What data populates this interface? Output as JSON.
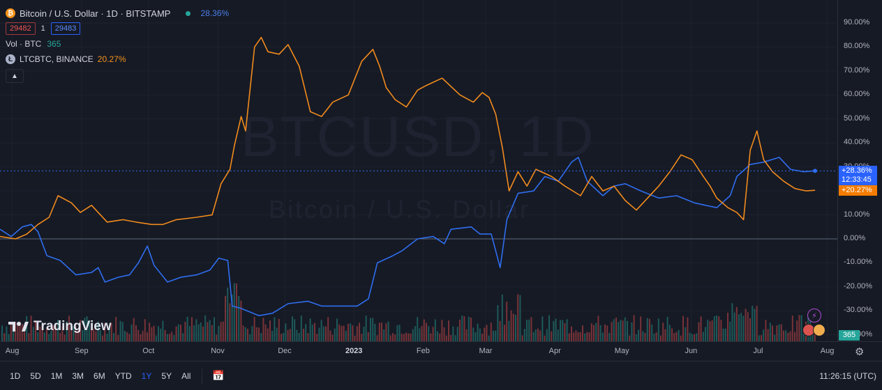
{
  "header": {
    "title": "Bitcoin / U.S. Dollar · 1D · BITSTAMP",
    "change_pct": "28.36%",
    "bid": "29482",
    "spread": "1",
    "ask": "29483",
    "vol_label": "Vol · BTC",
    "vol_value": "365",
    "compare_label": "LTCBTC, BINANCE",
    "compare_pct": "20.27%",
    "collapse_icon": "chevron-up-icon"
  },
  "watermark": {
    "symbol": "BTCUSD, 1D",
    "name": "Bitcoin / U.S. Dollar"
  },
  "logo": {
    "text": "TradingView"
  },
  "y_axis": {
    "ticks": [
      "90.00%",
      "80.00%",
      "70.00%",
      "60.00%",
      "50.00%",
      "40.00%",
      "30.00%",
      "20.00%",
      "10.00%",
      "0.00%",
      "-10.00%",
      "-20.00%",
      "-30.00%",
      "-40.00%"
    ],
    "badge_btc_pct": "+28.36%",
    "badge_btc_timer": "12:33:45",
    "badge_ltc_pct": "+20.27%",
    "badge_vol": "365"
  },
  "x_axis": {
    "ticks": [
      "Aug",
      "Sep",
      "Oct",
      "Nov",
      "Dec",
      "2023",
      "Feb",
      "Mar",
      "Apr",
      "May",
      "Jun",
      "Jul",
      "Aug"
    ]
  },
  "toolbar": {
    "ranges": [
      "1D",
      "5D",
      "1M",
      "3M",
      "6M",
      "YTD",
      "1Y",
      "5Y",
      "All"
    ],
    "active_range": "1Y",
    "clock": "11:26:15 (UTC)"
  },
  "colors": {
    "btc": "#2f6ef0",
    "ltc": "#f28b1d",
    "vol_up": "#26a69a",
    "vol_down": "#ef5350",
    "bg": "#161a25"
  },
  "chart_data": {
    "type": "line",
    "xlabel": "",
    "ylabel": "",
    "x_range": [
      "2022-07-29",
      "2023-07-29"
    ],
    "y_unit": "percent change",
    "ylim": [
      -40,
      95
    ],
    "grid": true,
    "series": [
      {
        "name": "Bitcoin / U.S. Dollar",
        "color": "#2f6ef0",
        "points": [
          [
            "2022-07-29",
            4
          ],
          [
            "2022-08-03",
            1
          ],
          [
            "2022-08-08",
            5
          ],
          [
            "2022-08-12",
            6
          ],
          [
            "2022-08-15",
            3
          ],
          [
            "2022-08-19",
            -7
          ],
          [
            "2022-08-25",
            -9
          ],
          [
            "2022-09-01",
            -15
          ],
          [
            "2022-09-08",
            -14
          ],
          [
            "2022-09-11",
            -12
          ],
          [
            "2022-09-14",
            -18
          ],
          [
            "2022-09-20",
            -16
          ],
          [
            "2022-09-25",
            -15
          ],
          [
            "2022-09-29",
            -10
          ],
          [
            "2022-10-03",
            -3
          ],
          [
            "2022-10-06",
            -11
          ],
          [
            "2022-10-12",
            -18
          ],
          [
            "2022-10-18",
            -16
          ],
          [
            "2022-10-25",
            -15
          ],
          [
            "2022-10-31",
            -13
          ],
          [
            "2022-11-04",
            -8
          ],
          [
            "2022-11-08",
            -9
          ],
          [
            "2022-11-10",
            -28
          ],
          [
            "2022-11-14",
            -29
          ],
          [
            "2022-11-22",
            -32
          ],
          [
            "2022-11-28",
            -31
          ],
          [
            "2022-12-05",
            -27
          ],
          [
            "2022-12-14",
            -26
          ],
          [
            "2022-12-20",
            -28
          ],
          [
            "2022-12-28",
            -28
          ],
          [
            "2023-01-05",
            -28
          ],
          [
            "2023-01-10",
            -25
          ],
          [
            "2023-01-14",
            -10
          ],
          [
            "2023-01-21",
            -7
          ],
          [
            "2023-01-25",
            -5
          ],
          [
            "2023-02-01",
            0
          ],
          [
            "2023-02-08",
            1
          ],
          [
            "2023-02-13",
            -2
          ],
          [
            "2023-02-16",
            4
          ],
          [
            "2023-02-25",
            5
          ],
          [
            "2023-03-01",
            2
          ],
          [
            "2023-03-06",
            2
          ],
          [
            "2023-03-10",
            -12
          ],
          [
            "2023-03-13",
            8
          ],
          [
            "2023-03-18",
            19
          ],
          [
            "2023-03-25",
            20
          ],
          [
            "2023-03-30",
            26
          ],
          [
            "2023-04-05",
            24
          ],
          [
            "2023-04-11",
            32
          ],
          [
            "2023-04-14",
            34
          ],
          [
            "2023-04-18",
            24
          ],
          [
            "2023-04-25",
            18
          ],
          [
            "2023-04-30",
            22
          ],
          [
            "2023-05-05",
            23
          ],
          [
            "2023-05-12",
            20
          ],
          [
            "2023-05-20",
            17
          ],
          [
            "2023-05-28",
            18
          ],
          [
            "2023-06-05",
            15
          ],
          [
            "2023-06-10",
            14
          ],
          [
            "2023-06-15",
            13
          ],
          [
            "2023-06-21",
            18
          ],
          [
            "2023-06-24",
            26
          ],
          [
            "2023-06-30",
            31
          ],
          [
            "2023-07-06",
            32
          ],
          [
            "2023-07-13",
            34
          ],
          [
            "2023-07-18",
            29
          ],
          [
            "2023-07-24",
            28
          ],
          [
            "2023-07-29",
            28.36
          ]
        ]
      },
      {
        "name": "LTCBTC, BINANCE",
        "color": "#f28b1d",
        "points": [
          [
            "2022-07-29",
            1
          ],
          [
            "2022-08-05",
            0
          ],
          [
            "2022-08-10",
            2
          ],
          [
            "2022-08-15",
            6
          ],
          [
            "2022-08-20",
            9
          ],
          [
            "2022-08-24",
            18
          ],
          [
            "2022-08-30",
            15
          ],
          [
            "2022-09-03",
            11
          ],
          [
            "2022-09-08",
            14
          ],
          [
            "2022-09-15",
            7
          ],
          [
            "2022-09-22",
            8
          ],
          [
            "2022-09-28",
            7
          ],
          [
            "2022-10-05",
            6
          ],
          [
            "2022-10-10",
            6
          ],
          [
            "2022-10-16",
            8
          ],
          [
            "2022-10-25",
            9
          ],
          [
            "2022-11-01",
            10
          ],
          [
            "2022-11-05",
            23
          ],
          [
            "2022-11-09",
            29
          ],
          [
            "2022-11-11",
            39
          ],
          [
            "2022-11-14",
            51
          ],
          [
            "2022-11-16",
            45
          ],
          [
            "2022-11-20",
            80
          ],
          [
            "2022-11-23",
            84
          ],
          [
            "2022-11-26",
            78
          ],
          [
            "2022-12-01",
            77
          ],
          [
            "2022-12-05",
            81
          ],
          [
            "2022-12-10",
            72
          ],
          [
            "2022-12-15",
            53
          ],
          [
            "2022-12-20",
            51
          ],
          [
            "2022-12-25",
            57
          ],
          [
            "2023-01-01",
            60
          ],
          [
            "2023-01-07",
            74
          ],
          [
            "2023-01-12",
            79
          ],
          [
            "2023-01-15",
            72
          ],
          [
            "2023-01-18",
            63
          ],
          [
            "2023-01-22",
            58
          ],
          [
            "2023-01-27",
            55
          ],
          [
            "2023-02-01",
            62
          ],
          [
            "2023-02-05",
            64
          ],
          [
            "2023-02-12",
            67
          ],
          [
            "2023-02-20",
            60
          ],
          [
            "2023-02-26",
            57
          ],
          [
            "2023-03-02",
            61
          ],
          [
            "2023-03-05",
            59
          ],
          [
            "2023-03-08",
            52
          ],
          [
            "2023-03-11",
            38
          ],
          [
            "2023-03-14",
            20
          ],
          [
            "2023-03-18",
            28
          ],
          [
            "2023-03-22",
            22
          ],
          [
            "2023-03-26",
            29
          ],
          [
            "2023-04-02",
            26
          ],
          [
            "2023-04-08",
            22
          ],
          [
            "2023-04-15",
            18
          ],
          [
            "2023-04-20",
            26
          ],
          [
            "2023-04-25",
            20
          ],
          [
            "2023-04-30",
            22
          ],
          [
            "2023-05-05",
            16
          ],
          [
            "2023-05-10",
            12
          ],
          [
            "2023-05-15",
            17
          ],
          [
            "2023-05-20",
            22
          ],
          [
            "2023-05-25",
            28
          ],
          [
            "2023-05-30",
            35
          ],
          [
            "2023-06-04",
            33
          ],
          [
            "2023-06-09",
            26
          ],
          [
            "2023-06-12",
            22
          ],
          [
            "2023-06-15",
            17
          ],
          [
            "2023-06-20",
            13
          ],
          [
            "2023-06-24",
            11
          ],
          [
            "2023-06-27",
            8
          ],
          [
            "2023-06-30",
            37
          ],
          [
            "2023-07-03",
            45
          ],
          [
            "2023-07-06",
            33
          ],
          [
            "2023-07-10",
            28
          ],
          [
            "2023-07-15",
            24
          ],
          [
            "2023-07-20",
            21
          ],
          [
            "2023-07-25",
            20
          ],
          [
            "2023-07-29",
            20.27
          ]
        ]
      }
    ],
    "reference_line": 0
  }
}
